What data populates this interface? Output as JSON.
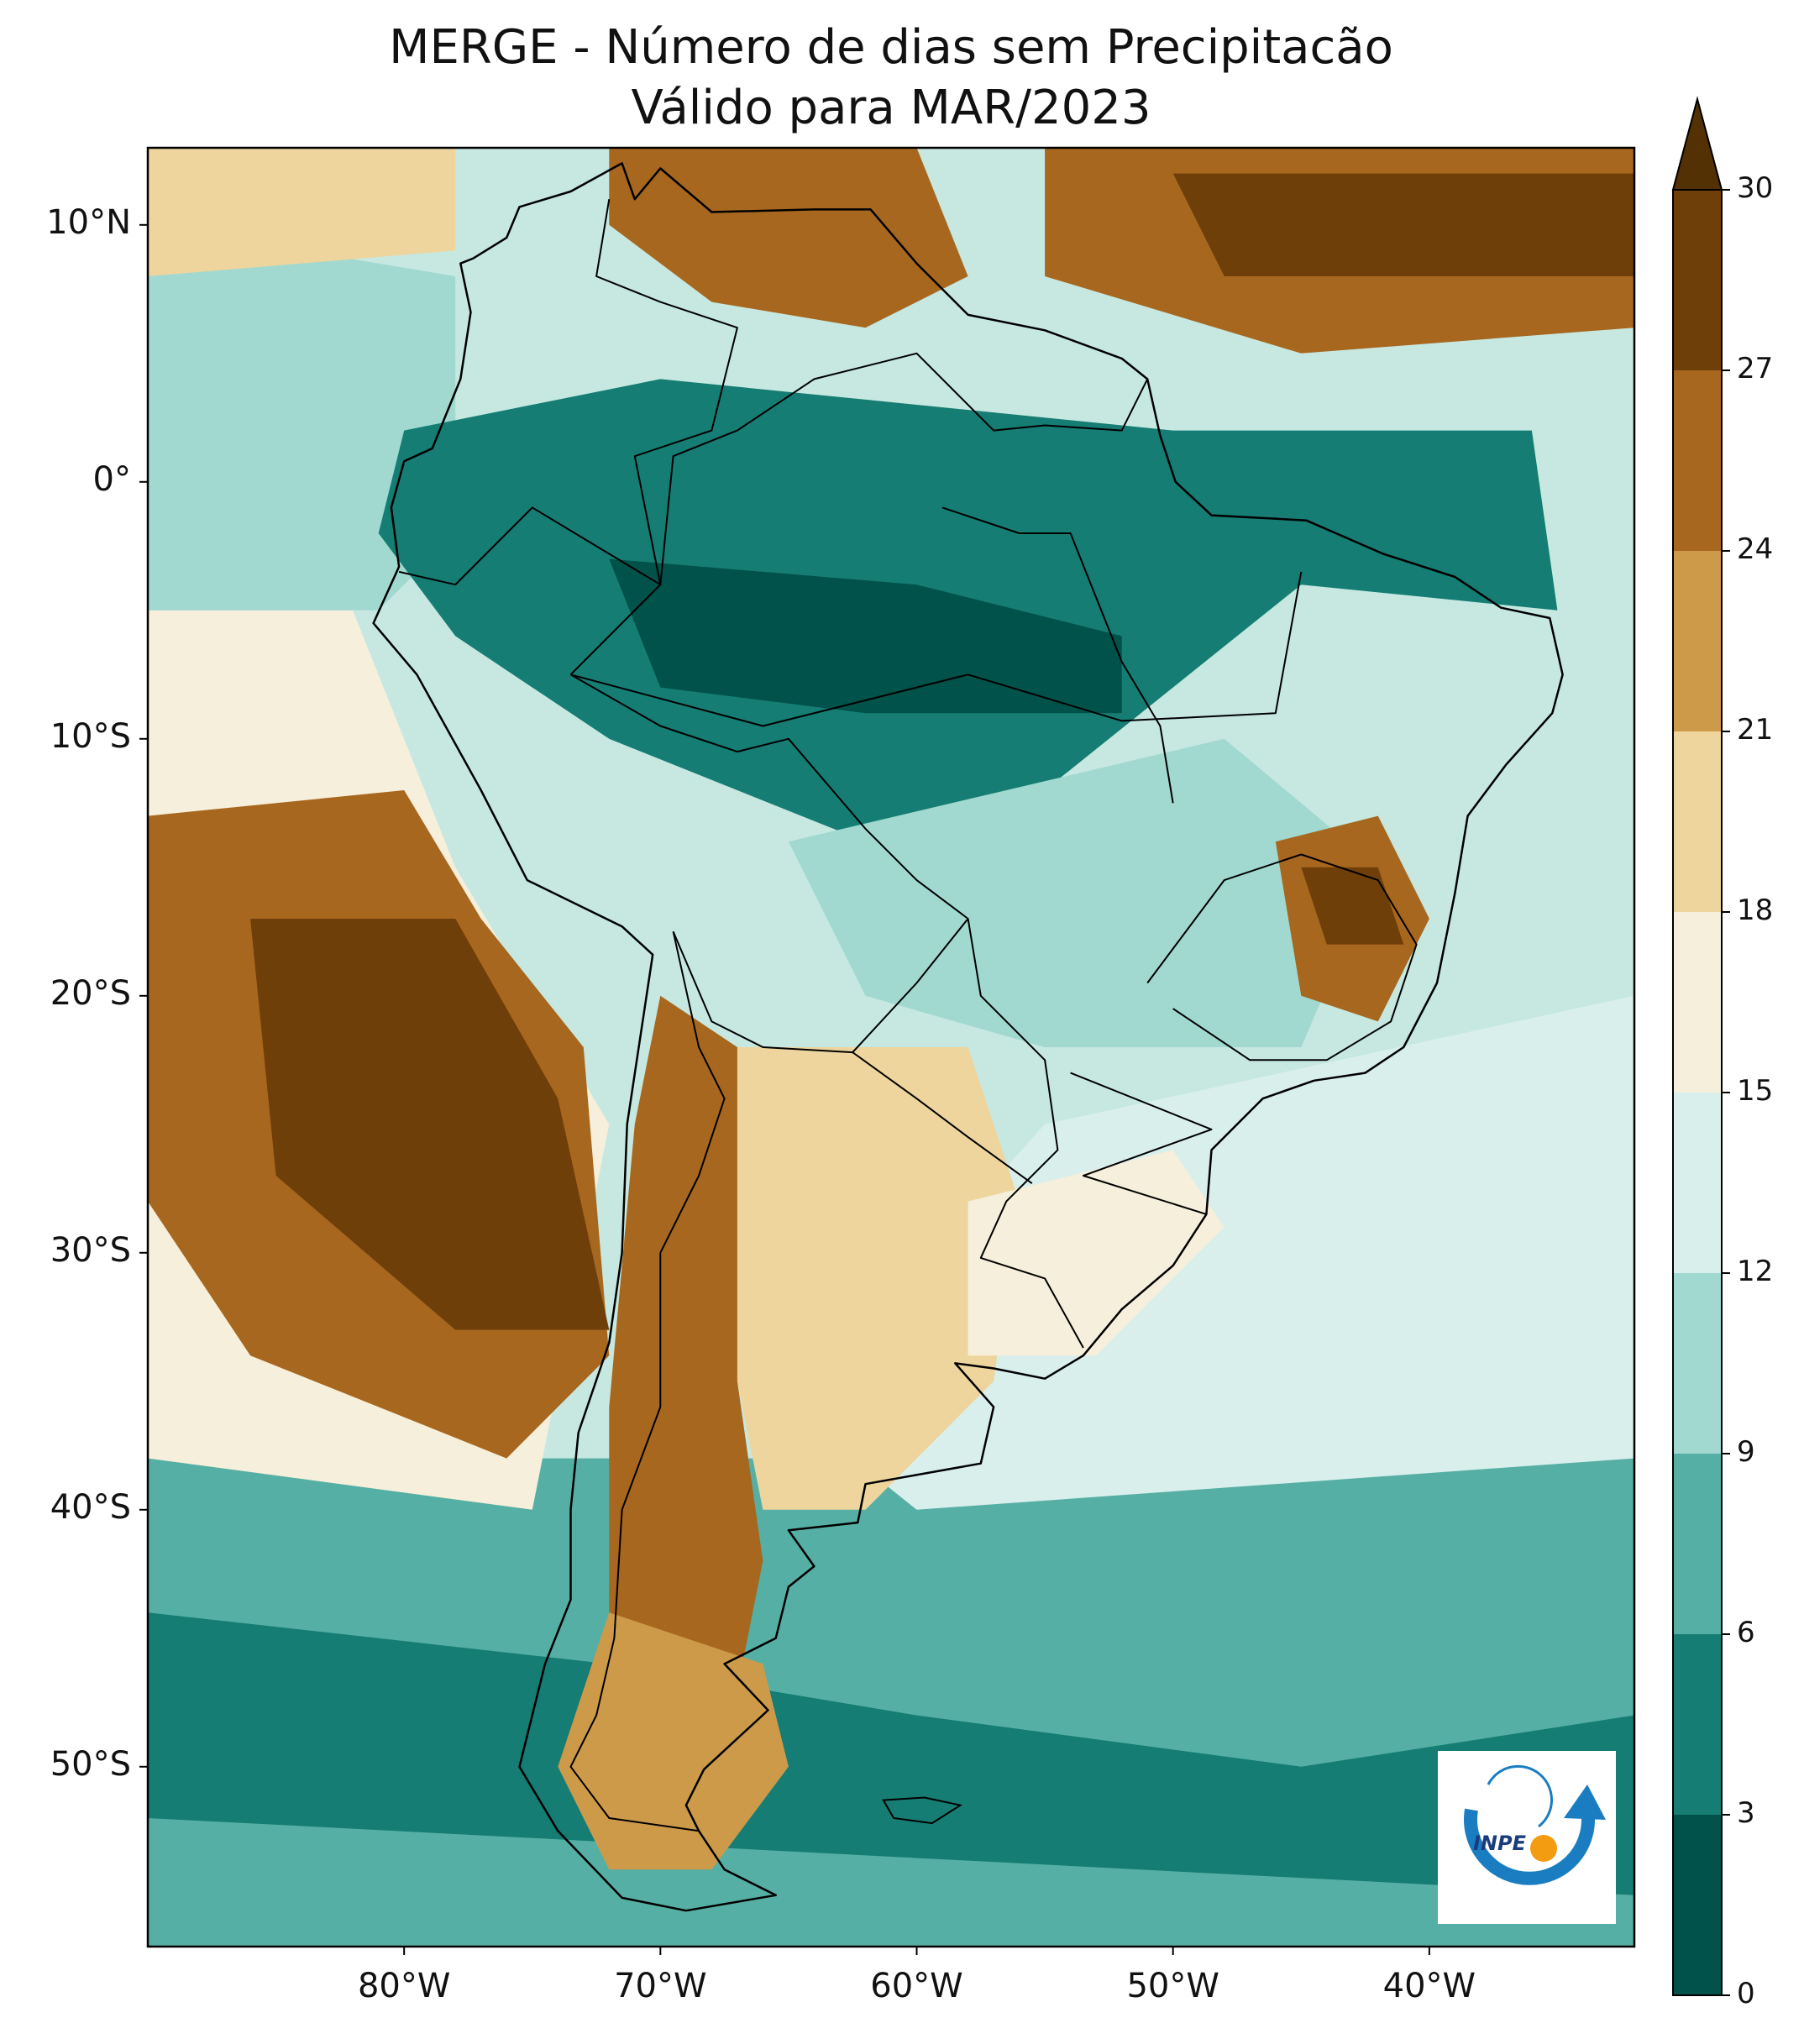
{
  "title": {
    "line1": "MERGE - Número de dias sem Precipitacão",
    "line2": "Válido para MAR/2023"
  },
  "map": {
    "extent": {
      "lon_min": -90,
      "lon_max": -32,
      "lat_min": -57,
      "lat_max": 13
    },
    "lat_ticks": [
      {
        "value": 10,
        "label": "10°N"
      },
      {
        "value": 0,
        "label": "0°"
      },
      {
        "value": -10,
        "label": "10°S"
      },
      {
        "value": -20,
        "label": "20°S"
      },
      {
        "value": -30,
        "label": "30°S"
      },
      {
        "value": -40,
        "label": "40°S"
      },
      {
        "value": -50,
        "label": "50°S"
      }
    ],
    "lon_ticks": [
      {
        "value": -80,
        "label": "80°W"
      },
      {
        "value": -70,
        "label": "70°W"
      },
      {
        "value": -60,
        "label": "60°W"
      },
      {
        "value": -50,
        "label": "50°W"
      },
      {
        "value": -40,
        "label": "40°W"
      }
    ]
  },
  "colorbar": {
    "levels": [
      0,
      3,
      6,
      9,
      12,
      15,
      18,
      21,
      24,
      27,
      30
    ],
    "labels": [
      "0",
      "3",
      "6",
      "9",
      "12",
      "15",
      "18",
      "21",
      "24",
      "27",
      "30"
    ],
    "colors": [
      "#01524a",
      "#157d73",
      "#56afa4",
      "#a1d9d0",
      "#d9efec",
      "#f5efdb",
      "#eed59d",
      "#cd9a4a",
      "#a8671f",
      "#6f3f0a"
    ],
    "extend_color": "#543005",
    "extend": "max"
  },
  "logo": {
    "text": "INPE",
    "ring_color": "#1a7dc2",
    "dot_color": "#f39c12"
  }
}
